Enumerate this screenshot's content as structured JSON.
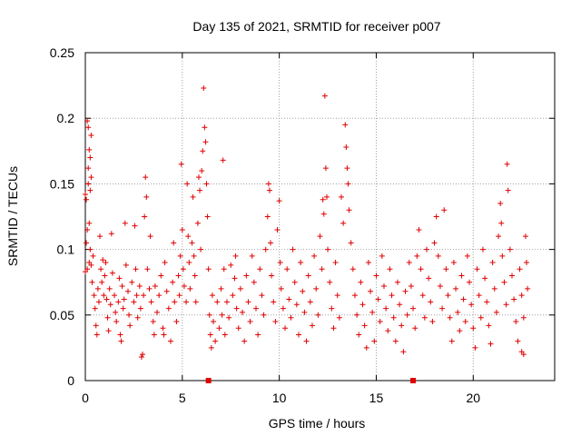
{
  "chart_data": {
    "type": "scatter",
    "title": "Day 135 of 2021, SRMTID for receiver p007",
    "xlabel": "GPS time / hours",
    "ylabel": "SRMTID / TECUs",
    "xlim": [
      0,
      24.2
    ],
    "ylim": [
      0,
      0.25
    ],
    "x_ticks": [
      0,
      5,
      10,
      15,
      20
    ],
    "x_tick_labels": [
      "0",
      "5",
      "10",
      "15",
      "20"
    ],
    "y_ticks": [
      0,
      0.05,
      0.1,
      0.15,
      0.2,
      0.25
    ],
    "y_tick_labels": [
      "0",
      "0.05",
      "0.1",
      "0.15",
      "0.2",
      "0.25"
    ],
    "grid": true,
    "series": [
      {
        "name": "SRMTID",
        "marker": "plus",
        "color": "#e00000",
        "points": [
          [
            0.0,
            0.083
          ],
          [
            0.0,
            0.142
          ],
          [
            0.05,
            0.138
          ],
          [
            0.05,
            0.105
          ],
          [
            0.1,
            0.198
          ],
          [
            0.1,
            0.115
          ],
          [
            0.1,
            0.085
          ],
          [
            0.15,
            0.193
          ],
          [
            0.15,
            0.162
          ],
          [
            0.15,
            0.15
          ],
          [
            0.2,
            0.176
          ],
          [
            0.2,
            0.12
          ],
          [
            0.2,
            0.09
          ],
          [
            0.25,
            0.17
          ],
          [
            0.25,
            0.145
          ],
          [
            0.25,
            0.1
          ],
          [
            0.3,
            0.187
          ],
          [
            0.3,
            0.155
          ],
          [
            0.3,
            0.088
          ],
          [
            0.35,
            0.075
          ],
          [
            0.4,
            0.095
          ],
          [
            0.45,
            0.065
          ],
          [
            0.5,
            0.055
          ],
          [
            0.55,
            0.042
          ],
          [
            0.6,
            0.035
          ],
          [
            0.65,
            0.07
          ],
          [
            0.7,
            0.06
          ],
          [
            0.75,
            0.11
          ],
          [
            0.8,
            0.085
          ],
          [
            0.85,
            0.075
          ],
          [
            0.9,
            0.092
          ],
          [
            0.95,
            0.065
          ],
          [
            1.0,
            0.08
          ],
          [
            1.05,
            0.09
          ],
          [
            1.1,
            0.062
          ],
          [
            1.15,
            0.048
          ],
          [
            1.2,
            0.038
          ],
          [
            1.25,
            0.07
          ],
          [
            1.3,
            0.058
          ],
          [
            1.35,
            0.112
          ],
          [
            1.4,
            0.082
          ],
          [
            1.5,
            0.065
          ],
          [
            1.55,
            0.052
          ],
          [
            1.6,
            0.045
          ],
          [
            1.7,
            0.06
          ],
          [
            1.75,
            0.078
          ],
          [
            1.8,
            0.035
          ],
          [
            1.85,
            0.03
          ],
          [
            1.9,
            0.072
          ],
          [
            1.95,
            0.055
          ],
          [
            2.0,
            0.062
          ],
          [
            2.05,
            0.12
          ],
          [
            2.1,
            0.088
          ],
          [
            2.2,
            0.068
          ],
          [
            2.25,
            0.05
          ],
          [
            2.3,
            0.042
          ],
          [
            2.4,
            0.075
          ],
          [
            2.5,
            0.06
          ],
          [
            2.55,
            0.118
          ],
          [
            2.6,
            0.085
          ],
          [
            2.65,
            0.065
          ],
          [
            2.7,
            0.048
          ],
          [
            2.8,
            0.072
          ],
          [
            2.85,
            0.055
          ],
          [
            2.9,
            0.018
          ],
          [
            2.95,
            0.02
          ],
          [
            3.0,
            0.065
          ],
          [
            3.05,
            0.125
          ],
          [
            3.1,
            0.155
          ],
          [
            3.15,
            0.14
          ],
          [
            3.2,
            0.085
          ],
          [
            3.3,
            0.07
          ],
          [
            3.35,
            0.11
          ],
          [
            3.4,
            0.06
          ],
          [
            3.5,
            0.045
          ],
          [
            3.55,
            0.035
          ],
          [
            3.6,
            0.072
          ],
          [
            3.7,
            0.052
          ],
          [
            3.8,
            0.065
          ],
          [
            3.9,
            0.08
          ],
          [
            4.0,
            0.04
          ],
          [
            4.05,
            0.035
          ],
          [
            4.1,
            0.09
          ],
          [
            4.2,
            0.068
          ],
          [
            4.3,
            0.055
          ],
          [
            4.4,
            0.03
          ],
          [
            4.5,
            0.075
          ],
          [
            4.55,
            0.105
          ],
          [
            4.6,
            0.06
          ],
          [
            4.7,
            0.045
          ],
          [
            4.8,
            0.08
          ],
          [
            4.85,
            0.065
          ],
          [
            4.9,
            0.095
          ],
          [
            4.95,
            0.165
          ],
          [
            5.0,
            0.115
          ],
          [
            5.05,
            0.085
          ],
          [
            5.1,
            0.072
          ],
          [
            5.2,
            0.06
          ],
          [
            5.25,
            0.15
          ],
          [
            5.3,
            0.11
          ],
          [
            5.35,
            0.09
          ],
          [
            5.4,
            0.07
          ],
          [
            5.5,
            0.105
          ],
          [
            5.55,
            0.14
          ],
          [
            5.6,
            0.095
          ],
          [
            5.65,
            0.08
          ],
          [
            5.7,
            0.06
          ],
          [
            5.8,
            0.12
          ],
          [
            5.85,
            0.155
          ],
          [
            5.9,
            0.145
          ],
          [
            5.95,
            0.1
          ],
          [
            6.0,
            0.16
          ],
          [
            6.05,
            0.175
          ],
          [
            6.1,
            0.223
          ],
          [
            6.15,
            0.193
          ],
          [
            6.2,
            0.182
          ],
          [
            6.25,
            0.15
          ],
          [
            6.3,
            0.125
          ],
          [
            6.35,
            0.085
          ],
          [
            6.4,
            0.05
          ],
          [
            6.45,
            0.035
          ],
          [
            6.5,
            0.025
          ],
          [
            6.55,
            0.065
          ],
          [
            6.6,
            0.045
          ],
          [
            6.7,
            0.03
          ],
          [
            6.8,
            0.06
          ],
          [
            6.9,
            0.04
          ],
          [
            7.0,
            0.07
          ],
          [
            7.05,
            0.05
          ],
          [
            7.1,
            0.168
          ],
          [
            7.15,
            0.085
          ],
          [
            7.2,
            0.035
          ],
          [
            7.3,
            0.06
          ],
          [
            7.4,
            0.048
          ],
          [
            7.5,
            0.088
          ],
          [
            7.6,
            0.065
          ],
          [
            7.7,
            0.078
          ],
          [
            7.75,
            0.095
          ],
          [
            7.8,
            0.055
          ],
          [
            7.9,
            0.04
          ],
          [
            8.0,
            0.07
          ],
          [
            8.1,
            0.052
          ],
          [
            8.2,
            0.03
          ],
          [
            8.3,
            0.08
          ],
          [
            8.4,
            0.06
          ],
          [
            8.5,
            0.045
          ],
          [
            8.6,
            0.095
          ],
          [
            8.7,
            0.075
          ],
          [
            8.8,
            0.055
          ],
          [
            8.9,
            0.035
          ],
          [
            9.0,
            0.085
          ],
          [
            9.1,
            0.065
          ],
          [
            9.2,
            0.05
          ],
          [
            9.3,
            0.1
          ],
          [
            9.4,
            0.125
          ],
          [
            9.45,
            0.15
          ],
          [
            9.5,
            0.145
          ],
          [
            9.55,
            0.105
          ],
          [
            9.6,
            0.08
          ],
          [
            9.7,
            0.06
          ],
          [
            9.8,
            0.045
          ],
          [
            9.9,
            0.115
          ],
          [
            10.0,
            0.137
          ],
          [
            10.05,
            0.09
          ],
          [
            10.1,
            0.07
          ],
          [
            10.2,
            0.055
          ],
          [
            10.3,
            0.04
          ],
          [
            10.4,
            0.085
          ],
          [
            10.5,
            0.062
          ],
          [
            10.6,
            0.048
          ],
          [
            10.7,
            0.1
          ],
          [
            10.8,
            0.075
          ],
          [
            10.9,
            0.058
          ],
          [
            11.0,
            0.035
          ],
          [
            11.1,
            0.09
          ],
          [
            11.2,
            0.068
          ],
          [
            11.3,
            0.052
          ],
          [
            11.4,
            0.03
          ],
          [
            11.5,
            0.08
          ],
          [
            11.6,
            0.06
          ],
          [
            11.7,
            0.042
          ],
          [
            11.8,
            0.095
          ],
          [
            11.9,
            0.07
          ],
          [
            12.0,
            0.05
          ],
          [
            12.1,
            0.11
          ],
          [
            12.2,
            0.085
          ],
          [
            12.25,
            0.138
          ],
          [
            12.3,
            0.127
          ],
          [
            12.35,
            0.217
          ],
          [
            12.4,
            0.162
          ],
          [
            12.45,
            0.14
          ],
          [
            12.5,
            0.1
          ],
          [
            12.6,
            0.075
          ],
          [
            12.7,
            0.055
          ],
          [
            12.8,
            0.04
          ],
          [
            12.9,
            0.09
          ],
          [
            13.0,
            0.065
          ],
          [
            13.1,
            0.048
          ],
          [
            13.2,
            0.14
          ],
          [
            13.3,
            0.12
          ],
          [
            13.4,
            0.195
          ],
          [
            13.45,
            0.178
          ],
          [
            13.5,
            0.162
          ],
          [
            13.55,
            0.15
          ],
          [
            13.6,
            0.13
          ],
          [
            13.7,
            0.105
          ],
          [
            13.8,
            0.085
          ],
          [
            13.9,
            0.065
          ],
          [
            14.0,
            0.05
          ],
          [
            14.1,
            0.035
          ],
          [
            14.2,
            0.075
          ],
          [
            14.3,
            0.058
          ],
          [
            14.4,
            0.042
          ],
          [
            14.5,
            0.025
          ],
          [
            14.6,
            0.09
          ],
          [
            14.7,
            0.068
          ],
          [
            14.8,
            0.052
          ],
          [
            14.9,
            0.03
          ],
          [
            15.0,
            0.08
          ],
          [
            15.1,
            0.062
          ],
          [
            15.2,
            0.045
          ],
          [
            15.3,
            0.095
          ],
          [
            15.4,
            0.072
          ],
          [
            15.5,
            0.055
          ],
          [
            15.6,
            0.038
          ],
          [
            15.7,
            0.085
          ],
          [
            15.8,
            0.065
          ],
          [
            15.9,
            0.048
          ],
          [
            16.0,
            0.03
          ],
          [
            16.1,
            0.075
          ],
          [
            16.2,
            0.058
          ],
          [
            16.3,
            0.042
          ],
          [
            16.4,
            0.022
          ],
          [
            16.5,
            0.068
          ],
          [
            16.6,
            0.05
          ],
          [
            16.7,
            0.09
          ],
          [
            16.8,
            0.072
          ],
          [
            16.9,
            0.055
          ],
          [
            17.0,
            0.04
          ],
          [
            17.1,
            0.095
          ],
          [
            17.2,
            0.115
          ],
          [
            17.3,
            0.085
          ],
          [
            17.4,
            0.065
          ],
          [
            17.5,
            0.048
          ],
          [
            17.6,
            0.1
          ],
          [
            17.7,
            0.078
          ],
          [
            17.8,
            0.06
          ],
          [
            17.9,
            0.045
          ],
          [
            18.0,
            0.105
          ],
          [
            18.1,
            0.125
          ],
          [
            18.2,
            0.095
          ],
          [
            18.3,
            0.072
          ],
          [
            18.4,
            0.055
          ],
          [
            18.5,
            0.13
          ],
          [
            18.6,
            0.085
          ],
          [
            18.7,
            0.065
          ],
          [
            18.8,
            0.048
          ],
          [
            18.9,
            0.03
          ],
          [
            19.0,
            0.09
          ],
          [
            19.1,
            0.07
          ],
          [
            19.2,
            0.052
          ],
          [
            19.3,
            0.038
          ],
          [
            19.4,
            0.08
          ],
          [
            19.5,
            0.062
          ],
          [
            19.6,
            0.045
          ],
          [
            19.7,
            0.095
          ],
          [
            19.8,
            0.075
          ],
          [
            19.9,
            0.058
          ],
          [
            20.0,
            0.04
          ],
          [
            20.1,
            0.025
          ],
          [
            20.2,
            0.085
          ],
          [
            20.3,
            0.065
          ],
          [
            20.4,
            0.048
          ],
          [
            20.5,
            0.1
          ],
          [
            20.6,
            0.078
          ],
          [
            20.7,
            0.06
          ],
          [
            20.8,
            0.042
          ],
          [
            20.9,
            0.028
          ],
          [
            21.0,
            0.09
          ],
          [
            21.1,
            0.07
          ],
          [
            21.2,
            0.052
          ],
          [
            21.3,
            0.11
          ],
          [
            21.4,
            0.135
          ],
          [
            21.45,
            0.12
          ],
          [
            21.5,
            0.095
          ],
          [
            21.6,
            0.075
          ],
          [
            21.7,
            0.058
          ],
          [
            21.75,
            0.165
          ],
          [
            21.8,
            0.145
          ],
          [
            21.9,
            0.1
          ],
          [
            22.0,
            0.08
          ],
          [
            22.1,
            0.062
          ],
          [
            22.2,
            0.045
          ],
          [
            22.3,
            0.03
          ],
          [
            22.4,
            0.085
          ],
          [
            22.5,
            0.065
          ],
          [
            22.6,
            0.048
          ],
          [
            22.7,
            0.11
          ],
          [
            22.75,
            0.09
          ],
          [
            22.8,
            0.07
          ],
          [
            22.5,
            0.022
          ],
          [
            22.6,
            0.02
          ]
        ]
      }
    ],
    "axis_marks": [
      6.35,
      16.9
    ]
  }
}
